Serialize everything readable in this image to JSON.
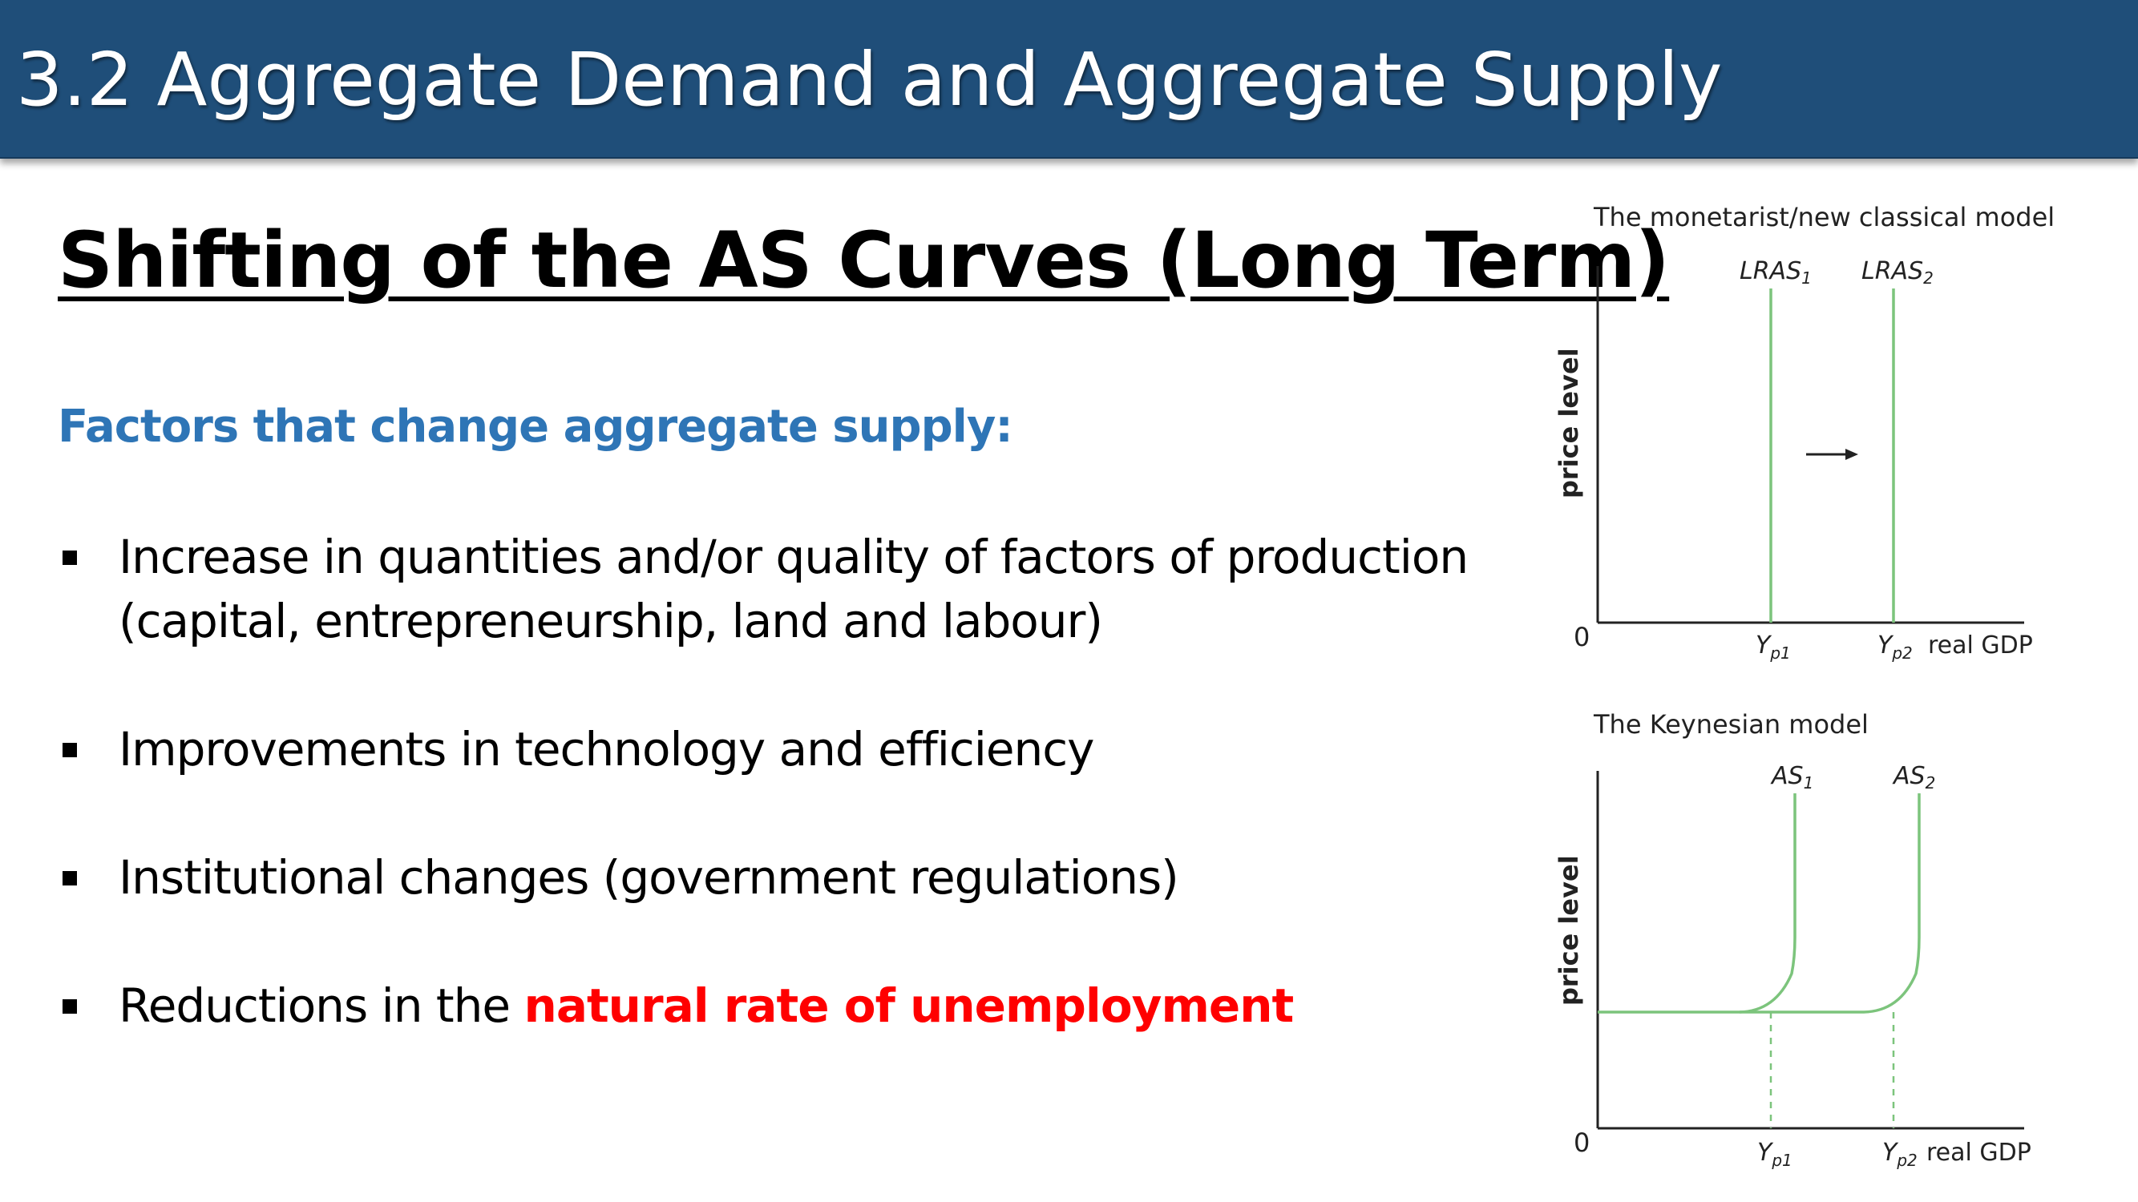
{
  "header": {
    "title": "3.2 Aggregate Demand and Aggregate Supply"
  },
  "slide": {
    "title": "Shifting of the AS Curves (Long Term)",
    "subtitle": "Factors that change aggregate supply:",
    "bullets": [
      {
        "line1": "Increase in quantities and/or quality of factors of production",
        "line2": "(capital, entrepreneurship, land and labour)"
      },
      {
        "text": "Improvements in technology and efficiency"
      },
      {
        "text": "Institutional changes (government regulations)"
      },
      {
        "prefix": "Reductions in the ",
        "highlight": "natural rate of unemployment"
      }
    ]
  },
  "colors": {
    "header_bg": "#1f4e79",
    "subtitle": "#2e75b6",
    "highlight": "#ff0000",
    "curve": "#7cc47c"
  },
  "diagrams": {
    "monetarist": {
      "title": "The monetarist/new classical model",
      "ylabel": "price level",
      "xlabel": "real GDP",
      "origin": "0",
      "curve1": {
        "name": "LRAS",
        "sub": "1"
      },
      "curve2": {
        "name": "LRAS",
        "sub": "2"
      },
      "x1": {
        "name": "Y",
        "sub": "p1"
      },
      "x2": {
        "name": "Y",
        "sub": "p2"
      }
    },
    "keynesian": {
      "title": "The Keynesian model",
      "ylabel": "price level",
      "xlabel": "real GDP",
      "origin": "0",
      "curve1": {
        "name": "AS",
        "sub": "1"
      },
      "curve2": {
        "name": "AS",
        "sub": "2"
      },
      "x1": {
        "name": "Y",
        "sub": "p1"
      },
      "x2": {
        "name": "Y",
        "sub": "p2"
      }
    }
  }
}
